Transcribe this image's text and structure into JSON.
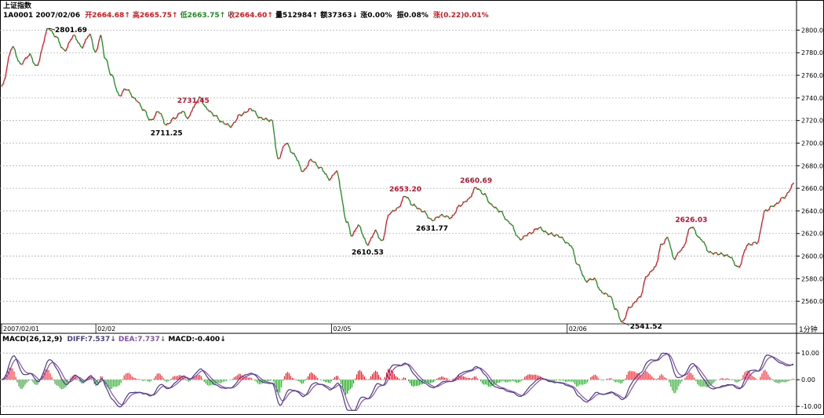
{
  "chart_title": "上证指数",
  "quote": {
    "code_date": "1A0001 2007/02/06",
    "open": "开2664.68↑",
    "high": "高2665.75↑",
    "low": "低2663.75↑",
    "close": "收2664.60↑",
    "volume": "量512984↑",
    "amount": "额37363↓",
    "change_pct": "涨0.00%",
    "amplitude": "振0.08%",
    "change": "涨(0.22)0.01%"
  },
  "macd_header": {
    "name": "MACD(26,12,9)",
    "diff": "DIFF:7.537↓",
    "dea": "DEA:7.737↓",
    "macd": "MACD:-0.400↓"
  },
  "period_label": "1分钟",
  "colors": {
    "up": "#e4141c",
    "down": "#1a8f1a",
    "label_high": "#c8102e",
    "label_low": "#000000",
    "diff_line": "#4b3b8f",
    "dea_line": "#8a4fb0",
    "grid": "#b0b0b0"
  },
  "chart_data": [
    {
      "type": "line",
      "title": "上证指数",
      "ylim": [
        2540,
        2810
      ],
      "y_ticks": [
        "2560.00",
        "2580.00",
        "2600.00",
        "2620.00",
        "2640.00",
        "2660.00",
        "2680.00",
        "2700.00",
        "2720.00",
        "2740.00",
        "2760.00",
        "2780.00",
        "2800.00"
      ],
      "x_ticks": [
        "2007/02/01",
        "02/02",
        "02/05",
        "02/06"
      ],
      "x_tick_index": [
        0,
        120,
        420,
        720
      ],
      "x_count": 1010,
      "keypoints": [
        [
          0,
          2750
        ],
        [
          14,
          2785
        ],
        [
          24,
          2770
        ],
        [
          36,
          2778
        ],
        [
          44,
          2768
        ],
        [
          60,
          2801.69
        ],
        [
          68,
          2795
        ],
        [
          80,
          2782
        ],
        [
          92,
          2795
        ],
        [
          102,
          2785
        ],
        [
          112,
          2796
        ],
        [
          120,
          2780
        ],
        [
          126,
          2795
        ],
        [
          132,
          2775
        ],
        [
          140,
          2760
        ],
        [
          150,
          2742
        ],
        [
          158,
          2748
        ],
        [
          172,
          2738
        ],
        [
          180,
          2730
        ],
        [
          190,
          2720
        ],
        [
          200,
          2728
        ],
        [
          210,
          2716
        ],
        [
          220,
          2722
        ],
        [
          230,
          2728
        ],
        [
          238,
          2722
        ],
        [
          244,
          2731.45
        ],
        [
          252,
          2740
        ],
        [
          262,
          2730
        ],
        [
          270,
          2725
        ],
        [
          282,
          2718
        ],
        [
          292,
          2715
        ],
        [
          304,
          2725
        ],
        [
          318,
          2730
        ],
        [
          330,
          2722
        ],
        [
          344,
          2720
        ],
        [
          352,
          2686
        ],
        [
          362,
          2700
        ],
        [
          372,
          2690
        ],
        [
          384,
          2675
        ],
        [
          394,
          2685
        ],
        [
          406,
          2678
        ],
        [
          418,
          2668
        ],
        [
          426,
          2675
        ],
        [
          440,
          2630
        ],
        [
          446,
          2618
        ],
        [
          454,
          2627
        ],
        [
          466,
          2610.53
        ],
        [
          476,
          2622
        ],
        [
          484,
          2613
        ],
        [
          494,
          2638
        ],
        [
          504,
          2642
        ],
        [
          514,
          2653.2
        ],
        [
          524,
          2645
        ],
        [
          536,
          2640
        ],
        [
          548,
          2631.77
        ],
        [
          560,
          2636
        ],
        [
          572,
          2634
        ],
        [
          584,
          2645
        ],
        [
          594,
          2650
        ],
        [
          604,
          2660.69
        ],
        [
          614,
          2655
        ],
        [
          624,
          2645
        ],
        [
          634,
          2640
        ],
        [
          646,
          2630
        ],
        [
          660,
          2615
        ],
        [
          672,
          2620
        ],
        [
          684,
          2625
        ],
        [
          696,
          2620
        ],
        [
          708,
          2618
        ],
        [
          724,
          2610
        ],
        [
          734,
          2592
        ],
        [
          744,
          2578
        ],
        [
          754,
          2580
        ],
        [
          764,
          2568
        ],
        [
          774,
          2565
        ],
        [
          782,
          2553
        ],
        [
          790,
          2541.52
        ],
        [
          800,
          2555
        ],
        [
          812,
          2563
        ],
        [
          822,
          2583
        ],
        [
          832,
          2590
        ],
        [
          840,
          2610
        ],
        [
          848,
          2616
        ],
        [
          856,
          2598
        ],
        [
          866,
          2606
        ],
        [
          878,
          2626.03
        ],
        [
          890,
          2615
        ],
        [
          902,
          2603
        ],
        [
          914,
          2602
        ],
        [
          926,
          2600
        ],
        [
          938,
          2590
        ],
        [
          950,
          2610
        ],
        [
          962,
          2612
        ],
        [
          972,
          2640
        ],
        [
          984,
          2645
        ],
        [
          996,
          2652
        ],
        [
          1010,
          2664.6
        ]
      ],
      "annotations": [
        {
          "text": "2801.69",
          "x": 60,
          "y": 2801.69,
          "type": "high"
        },
        {
          "text": "2731.45",
          "x": 244,
          "y": 2731.45,
          "type": "high"
        },
        {
          "text": "2711.25",
          "x": 210,
          "y": 2716,
          "type": "low"
        },
        {
          "text": "2653.20",
          "x": 514,
          "y": 2653.2,
          "type": "high"
        },
        {
          "text": "2660.69",
          "x": 604,
          "y": 2660.69,
          "type": "high"
        },
        {
          "text": "2631.77",
          "x": 548,
          "y": 2631.77,
          "type": "low"
        },
        {
          "text": "2610.53",
          "x": 466,
          "y": 2610.53,
          "type": "low"
        },
        {
          "text": "2626.03",
          "x": 878,
          "y": 2626.03,
          "type": "high"
        },
        {
          "text": "2541.52",
          "x": 790,
          "y": 2541.52,
          "type": "low"
        }
      ]
    },
    {
      "type": "bar",
      "title": "MACD(26,12,9)",
      "ylim": [
        -12,
        13
      ],
      "y_ticks": [
        "10.00",
        "0.00",
        "-10.00"
      ],
      "series": [
        {
          "name": "DIFF",
          "values": []
        },
        {
          "name": "DEA",
          "values": []
        },
        {
          "name": "MACD",
          "values": []
        }
      ]
    }
  ]
}
